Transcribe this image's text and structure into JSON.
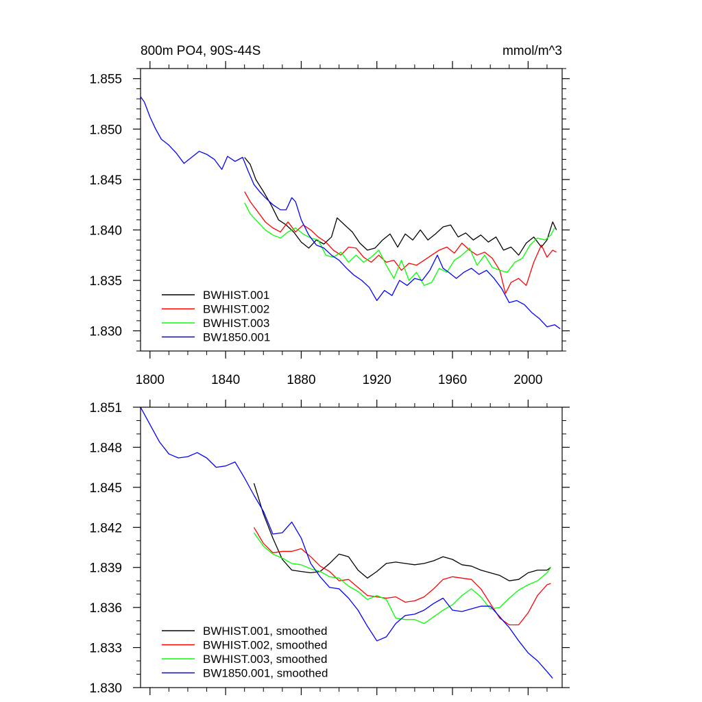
{
  "chart_data": [
    {
      "type": "line",
      "title": "800m PO4, 90S-44S",
      "units": "mmol/m^3",
      "xlim": [
        1795,
        2018
      ],
      "ylim": [
        1.828,
        1.856
      ],
      "x_ticks": [
        "1800",
        "1840",
        "1880",
        "1920",
        "1960",
        "2000"
      ],
      "y_ticks": [
        "1.830",
        "1.835",
        "1.840",
        "1.845",
        "1.850",
        "1.855"
      ],
      "legend_position": "bottom-left",
      "series": [
        {
          "name": "BWHIST.001",
          "color": "#000000",
          "x": [
            1850,
            1853,
            1856,
            1860,
            1864,
            1868,
            1872,
            1876,
            1880,
            1884,
            1888,
            1892,
            1896,
            1899,
            1903,
            1907,
            1911,
            1915,
            1919,
            1923,
            1927,
            1931,
            1935,
            1939,
            1943,
            1947,
            1951,
            1955,
            1959,
            1963,
            1967,
            1971,
            1975,
            1979,
            1983,
            1987,
            1991,
            1995,
            1999,
            2003,
            2007,
            2010,
            2013,
            2015
          ],
          "values": [
            1.8472,
            1.8465,
            1.845,
            1.8438,
            1.8425,
            1.841,
            1.8405,
            1.8398,
            1.8388,
            1.8382,
            1.839,
            1.8386,
            1.8393,
            1.8412,
            1.8405,
            1.8398,
            1.8387,
            1.838,
            1.8382,
            1.839,
            1.8396,
            1.8383,
            1.8396,
            1.839,
            1.84,
            1.839,
            1.8396,
            1.8403,
            1.8405,
            1.8393,
            1.8397,
            1.839,
            1.8395,
            1.8388,
            1.8393,
            1.838,
            1.8383,
            1.8375,
            1.8387,
            1.8393,
            1.8383,
            1.839,
            1.8408,
            1.84
          ]
        },
        {
          "name": "BWHIST.002",
          "color": "#ff0000",
          "x": [
            1850,
            1853,
            1857,
            1861,
            1865,
            1869,
            1873,
            1877,
            1881,
            1885,
            1889,
            1893,
            1897,
            1901,
            1905,
            1909,
            1913,
            1917,
            1921,
            1925,
            1929,
            1933,
            1937,
            1941,
            1945,
            1949,
            1953,
            1957,
            1961,
            1965,
            1969,
            1973,
            1977,
            1981,
            1985,
            1988,
            1991,
            1995,
            1999,
            2003,
            2007,
            2010,
            2013,
            2015
          ],
          "values": [
            1.8438,
            1.8428,
            1.8418,
            1.8408,
            1.8402,
            1.8398,
            1.8408,
            1.8398,
            1.8405,
            1.84,
            1.8393,
            1.8388,
            1.838,
            1.8375,
            1.8383,
            1.8382,
            1.8373,
            1.8368,
            1.8375,
            1.8368,
            1.837,
            1.836,
            1.8367,
            1.8365,
            1.837,
            1.8375,
            1.838,
            1.8383,
            1.8377,
            1.8387,
            1.838,
            1.8375,
            1.8378,
            1.8372,
            1.836,
            1.8337,
            1.8348,
            1.8352,
            1.8345,
            1.8368,
            1.8385,
            1.8373,
            1.838,
            1.8378
          ]
        },
        {
          "name": "BWHIST.003",
          "color": "#00ff00",
          "x": [
            1850,
            1853,
            1857,
            1861,
            1865,
            1869,
            1873,
            1877,
            1881,
            1885,
            1889,
            1893,
            1897,
            1901,
            1905,
            1909,
            1913,
            1917,
            1921,
            1925,
            1929,
            1933,
            1937,
            1941,
            1945,
            1949,
            1953,
            1957,
            1961,
            1965,
            1969,
            1973,
            1977,
            1981,
            1985,
            1989,
            1993,
            1997,
            2001,
            2005,
            2009,
            2012,
            2014
          ],
          "values": [
            1.8427,
            1.8416,
            1.8408,
            1.84,
            1.8395,
            1.8392,
            1.8398,
            1.8402,
            1.8396,
            1.8392,
            1.839,
            1.8375,
            1.8373,
            1.8378,
            1.8368,
            1.8375,
            1.8368,
            1.8373,
            1.838,
            1.8365,
            1.8352,
            1.837,
            1.835,
            1.8358,
            1.8345,
            1.8348,
            1.8362,
            1.8358,
            1.837,
            1.8375,
            1.8382,
            1.8365,
            1.8375,
            1.8363,
            1.836,
            1.8358,
            1.8368,
            1.8372,
            1.8385,
            1.8392,
            1.839,
            1.8395,
            1.8402
          ]
        },
        {
          "name": "BW1850.001",
          "color": "#0000ff",
          "x": [
            1795,
            1797,
            1800,
            1803,
            1806,
            1810,
            1814,
            1818,
            1822,
            1826,
            1830,
            1834,
            1838,
            1841,
            1845,
            1849,
            1852,
            1855,
            1858,
            1861,
            1865,
            1869,
            1872,
            1875,
            1877,
            1880,
            1884,
            1888,
            1892,
            1896,
            1900,
            1904,
            1908,
            1912,
            1916,
            1920,
            1924,
            1928,
            1932,
            1936,
            1940,
            1944,
            1948,
            1952,
            1955,
            1958,
            1962,
            1966,
            1970,
            1974,
            1978,
            1982,
            1986,
            1990,
            1994,
            1998,
            2002,
            2006,
            2010,
            2014,
            2017
          ],
          "values": [
            1.8532,
            1.8527,
            1.8512,
            1.85,
            1.849,
            1.8484,
            1.8476,
            1.8466,
            1.8472,
            1.8478,
            1.8475,
            1.847,
            1.846,
            1.8473,
            1.8468,
            1.8472,
            1.8458,
            1.8445,
            1.8438,
            1.8432,
            1.8425,
            1.842,
            1.842,
            1.8432,
            1.8428,
            1.841,
            1.8395,
            1.8385,
            1.8382,
            1.8375,
            1.837,
            1.8362,
            1.8355,
            1.835,
            1.8343,
            1.833,
            1.834,
            1.8335,
            1.835,
            1.8345,
            1.8352,
            1.835,
            1.836,
            1.8375,
            1.8362,
            1.8358,
            1.8352,
            1.8358,
            1.8362,
            1.8356,
            1.836,
            1.8352,
            1.8342,
            1.8328,
            1.833,
            1.8326,
            1.8318,
            1.8312,
            1.8304,
            1.8306,
            1.8302
          ]
        }
      ]
    },
    {
      "type": "line",
      "title": "",
      "xlim": [
        1795,
        2018
      ],
      "ylim": [
        1.83,
        1.851
      ],
      "y_ticks": [
        "1.830",
        "1.833",
        "1.836",
        "1.839",
        "1.842",
        "1.845",
        "1.848",
        "1.851"
      ],
      "legend_position": "bottom-left",
      "series": [
        {
          "name": "BWHIST.001, smoothed",
          "color": "#000000",
          "x": [
            1855,
            1860,
            1865,
            1870,
            1875,
            1880,
            1885,
            1890,
            1895,
            1900,
            1905,
            1910,
            1915,
            1920,
            1925,
            1930,
            1935,
            1940,
            1945,
            1950,
            1955,
            1960,
            1965,
            1970,
            1975,
            1980,
            1985,
            1990,
            1995,
            2000,
            2005,
            2010,
            2012
          ],
          "values": [
            1.8453,
            1.843,
            1.8412,
            1.8396,
            1.8388,
            1.8387,
            1.8386,
            1.8387,
            1.8393,
            1.84,
            1.8398,
            1.8388,
            1.8382,
            1.8387,
            1.8393,
            1.8394,
            1.8393,
            1.8392,
            1.8393,
            1.8395,
            1.8398,
            1.8396,
            1.8392,
            1.8391,
            1.8388,
            1.8386,
            1.8384,
            1.838,
            1.8381,
            1.8386,
            1.8388,
            1.8388,
            1.839
          ]
        },
        {
          "name": "BWHIST.002, smoothed",
          "color": "#ff0000",
          "x": [
            1855,
            1860,
            1865,
            1870,
            1875,
            1880,
            1885,
            1890,
            1895,
            1900,
            1905,
            1910,
            1915,
            1920,
            1925,
            1930,
            1935,
            1940,
            1945,
            1950,
            1955,
            1960,
            1965,
            1970,
            1975,
            1980,
            1985,
            1990,
            1995,
            2000,
            2005,
            2010,
            2012
          ],
          "values": [
            1.842,
            1.8408,
            1.8401,
            1.8402,
            1.8402,
            1.8404,
            1.8398,
            1.8391,
            1.8387,
            1.838,
            1.8381,
            1.8375,
            1.8369,
            1.8368,
            1.8367,
            1.8368,
            1.8364,
            1.8365,
            1.8368,
            1.8374,
            1.8381,
            1.8383,
            1.8382,
            1.8381,
            1.8374,
            1.8363,
            1.8352,
            1.8347,
            1.8347,
            1.8356,
            1.8369,
            1.8377,
            1.8378
          ]
        },
        {
          "name": "BWHIST.003, smoothed",
          "color": "#00ff00",
          "x": [
            1855,
            1860,
            1865,
            1870,
            1875,
            1880,
            1885,
            1890,
            1895,
            1900,
            1905,
            1910,
            1915,
            1920,
            1925,
            1930,
            1935,
            1940,
            1945,
            1950,
            1955,
            1960,
            1965,
            1970,
            1975,
            1980,
            1985,
            1990,
            1995,
            2000,
            2005,
            2010,
            2012
          ],
          "values": [
            1.8416,
            1.8406,
            1.84,
            1.8397,
            1.8393,
            1.8392,
            1.8389,
            1.8387,
            1.8383,
            1.8382,
            1.8376,
            1.8372,
            1.8366,
            1.8369,
            1.8366,
            1.8352,
            1.8351,
            1.8351,
            1.8348,
            1.8353,
            1.8358,
            1.8362,
            1.8369,
            1.8374,
            1.8368,
            1.8359,
            1.836,
            1.8367,
            1.8373,
            1.8377,
            1.838,
            1.8386,
            1.839
          ]
        },
        {
          "name": "BW1850.001, smoothed",
          "color": "#0000ff",
          "x": [
            1795,
            1800,
            1805,
            1810,
            1815,
            1820,
            1825,
            1830,
            1835,
            1840,
            1845,
            1850,
            1855,
            1860,
            1865,
            1870,
            1875,
            1880,
            1885,
            1890,
            1895,
            1900,
            1905,
            1910,
            1915,
            1920,
            1925,
            1930,
            1935,
            1940,
            1945,
            1950,
            1955,
            1960,
            1965,
            1970,
            1975,
            1980,
            1985,
            1990,
            1995,
            2000,
            2005,
            2010,
            2013
          ],
          "values": [
            1.851,
            1.8497,
            1.8484,
            1.8475,
            1.8472,
            1.8473,
            1.8476,
            1.8472,
            1.8465,
            1.8466,
            1.8469,
            1.8457,
            1.8444,
            1.8432,
            1.8415,
            1.8416,
            1.8424,
            1.8412,
            1.8393,
            1.8383,
            1.8375,
            1.8374,
            1.8367,
            1.8358,
            1.8346,
            1.8335,
            1.8338,
            1.8348,
            1.8354,
            1.8355,
            1.8358,
            1.8363,
            1.8367,
            1.8358,
            1.8357,
            1.8359,
            1.8361,
            1.8361,
            1.8353,
            1.8345,
            1.8335,
            1.8326,
            1.832,
            1.8312,
            1.8307
          ]
        }
      ]
    }
  ]
}
